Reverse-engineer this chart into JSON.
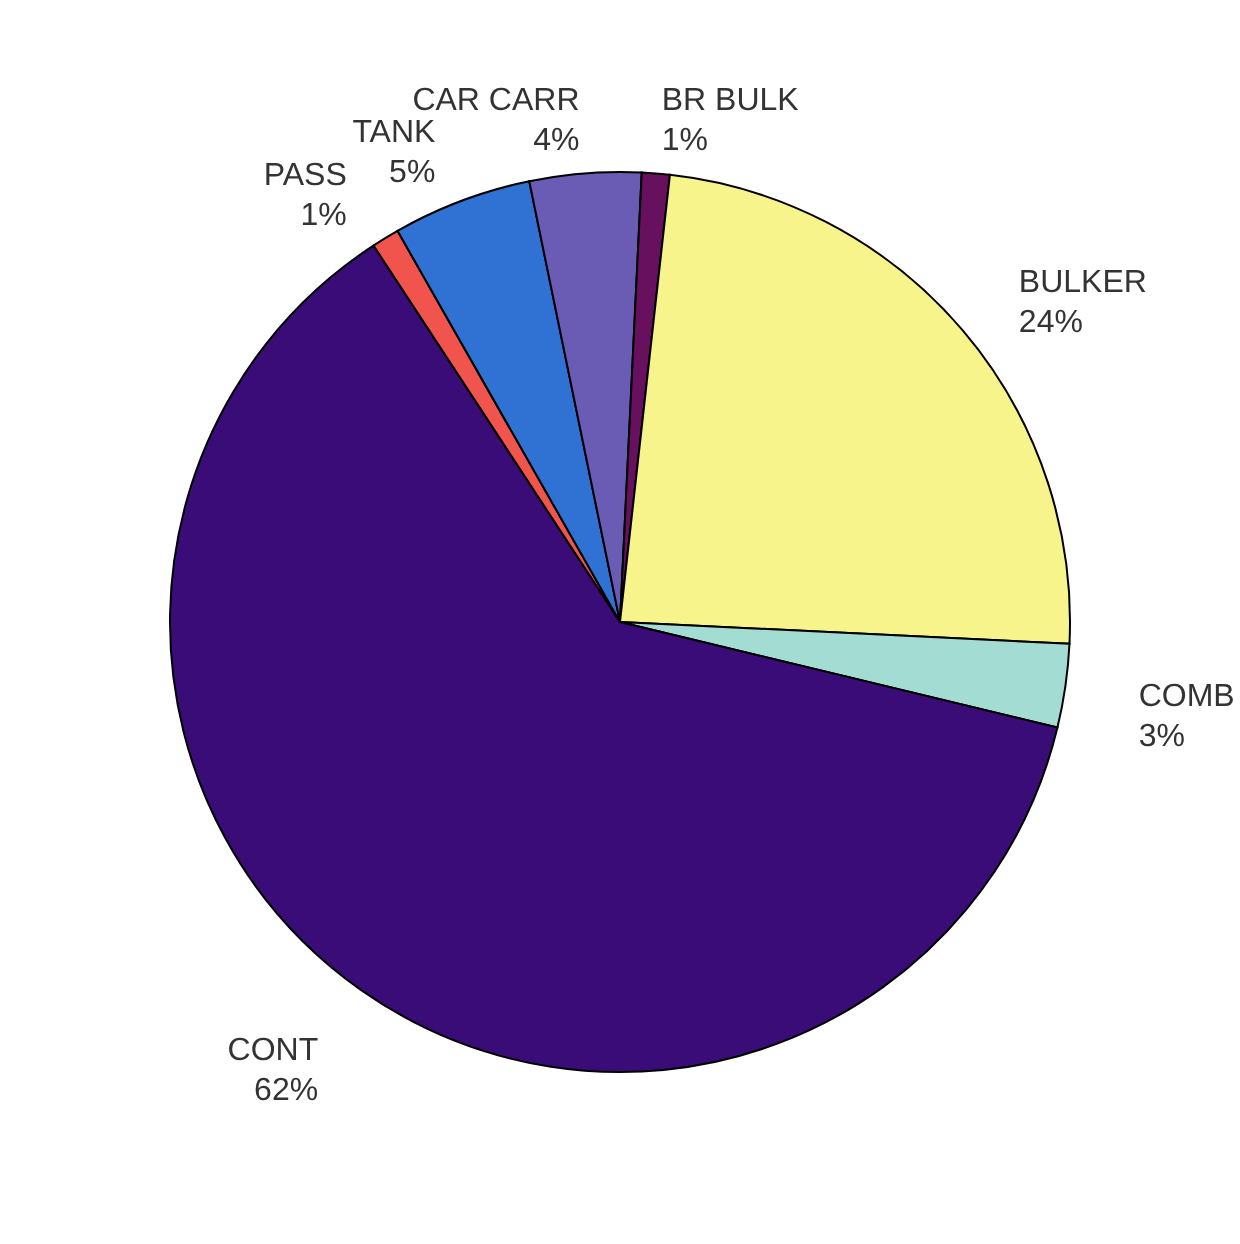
{
  "chart_data": {
    "type": "pie",
    "categories": [
      "PASS",
      "TANK",
      "CAR CARR",
      "BR BULK",
      "BULKER",
      "COMB",
      "CONT"
    ],
    "values": [
      1,
      5,
      4,
      1,
      24,
      3,
      62
    ],
    "value_labels": [
      "1%",
      "5%",
      "4%",
      "1%",
      "24%",
      "3%",
      "62%"
    ],
    "colors": [
      "#f0544c",
      "#2f72d4",
      "#6a5cb4",
      "#66105e",
      "#f8f48c",
      "#a2dcd2",
      "#3a0c78"
    ]
  }
}
